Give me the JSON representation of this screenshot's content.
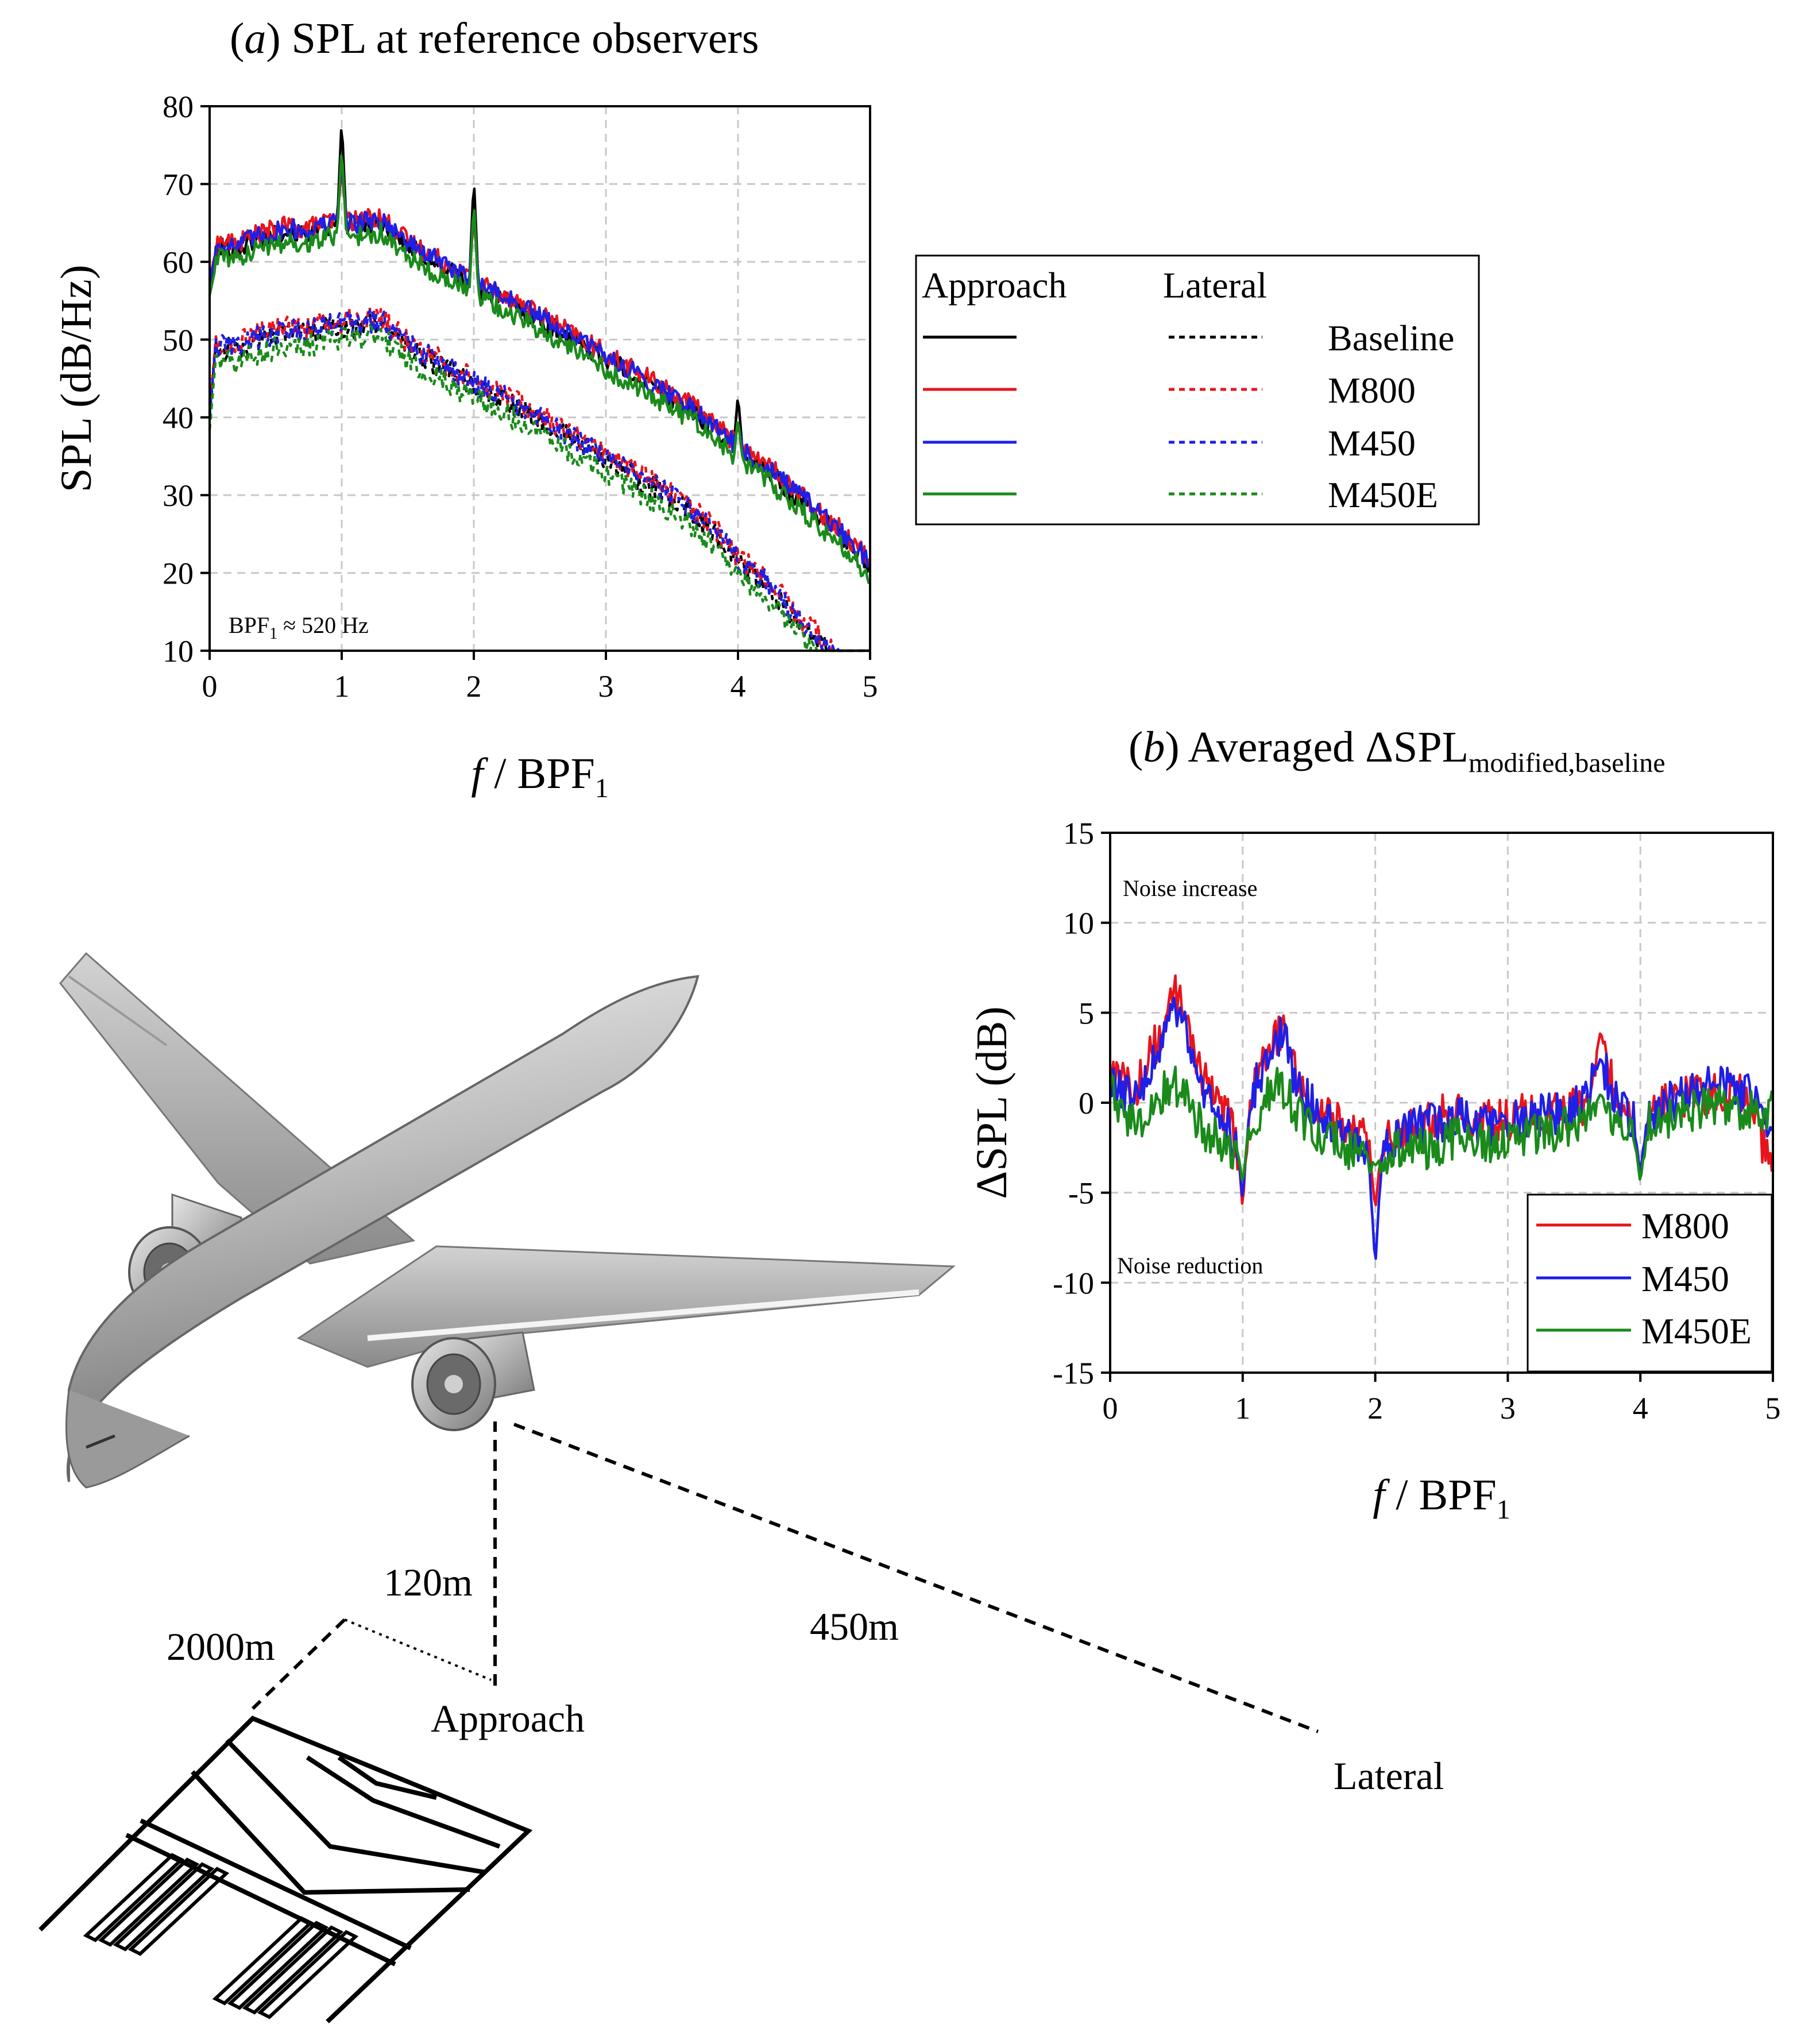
{
  "colors": {
    "baseline": "#000000",
    "m800": "#e8141c",
    "m450": "#1f1fe6",
    "m450e": "#1a8a1a"
  },
  "chart_data": [
    {
      "id": "a",
      "type": "line",
      "title_prefix": "(",
      "title_letter": "a",
      "title_rest": ") SPL at reference observers",
      "xlabel_var": "f",
      "xlabel_rest": " / BPF",
      "xlabel_sub": "1",
      "ylabel": "SPL (dB/Hz)",
      "xlim": [
        0,
        5
      ],
      "ylim": [
        10,
        80
      ],
      "xticks": [
        "0",
        "1",
        "2",
        "3",
        "4",
        "5"
      ],
      "yticks": [
        "10",
        "20",
        "30",
        "40",
        "50",
        "60",
        "70",
        "80"
      ],
      "grid": true,
      "annotation_pre": "BPF",
      "annotation_sub": "1",
      "annotation_post": " ≈ 520 Hz",
      "legend": {
        "placement": "right",
        "col_approach": "Approach",
        "col_lateral": "Lateral",
        "entries": [
          "Baseline",
          "M800",
          "M450",
          "M450E"
        ]
      },
      "approach_base": {
        "x": [
          0,
          0.05,
          0.1,
          0.2,
          0.3,
          0.4,
          0.5,
          0.6,
          0.7,
          0.8,
          0.9,
          0.95,
          1.0,
          1.05,
          1.1,
          1.2,
          1.3,
          1.4,
          1.5,
          1.6,
          1.8,
          1.95,
          2.0,
          2.05,
          2.2,
          2.4,
          2.6,
          2.8,
          3.0,
          3.2,
          3.4,
          3.6,
          3.8,
          3.95,
          4.0,
          4.05,
          4.2,
          4.4,
          4.6,
          4.8,
          5.0
        ],
        "y": [
          60,
          61.5,
          62,
          61.5,
          62.5,
          63,
          63.5,
          64,
          63.5,
          64,
          64.5,
          64.5,
          64.5,
          65,
          64.5,
          65,
          65,
          63.5,
          62,
          61,
          59,
          57.5,
          57,
          56.5,
          55.5,
          53.5,
          51.5,
          49.5,
          47.5,
          45.5,
          43.5,
          41.5,
          39,
          36.5,
          35.5,
          35,
          33.5,
          30.5,
          27.5,
          24.5,
          21
        ]
      },
      "series": [
        {
          "name": "Baseline",
          "approach": {
            "offset": 0,
            "peaks": [
              [
                1,
                78.5
              ],
              [
                2,
                71
              ],
              [
                4,
                43
              ]
            ]
          },
          "lateral": {
            "offset": -13
          }
        },
        {
          "name": "M800",
          "approach": {
            "offset": 0.7,
            "peaks": [
              [
                1,
                72
              ],
              [
                2,
                66
              ],
              [
                4,
                39
              ]
            ]
          },
          "lateral": {
            "offset": -12.2
          }
        },
        {
          "name": "M450",
          "approach": {
            "offset": 0.4,
            "peaks": [
              [
                1,
                73
              ],
              [
                2,
                67
              ],
              [
                4,
                39.5
              ]
            ]
          },
          "lateral": {
            "offset": -12.6
          }
        },
        {
          "name": "M450E",
          "approach": {
            "offset": -1.3,
            "peaks": [
              [
                1,
                75
              ],
              [
                2,
                68
              ],
              [
                4,
                40
              ]
            ]
          },
          "lateral": {
            "offset": -14.6
          }
        }
      ]
    },
    {
      "id": "b",
      "type": "line",
      "title_prefix": "(",
      "title_letter": "b",
      "title_rest": ") Averaged ΔSPL",
      "title_sub": "modified,baseline",
      "xlabel_var": "f",
      "xlabel_rest": " / BPF",
      "xlabel_sub": "1",
      "ylabel": "ΔSPL (dB)",
      "xlim": [
        0,
        5
      ],
      "ylim": [
        -15,
        15
      ],
      "xticks": [
        "0",
        "1",
        "2",
        "3",
        "4",
        "5"
      ],
      "yticks": [
        "-15",
        "-10",
        "-5",
        "0",
        "5",
        "10",
        "15"
      ],
      "grid": true,
      "annotation_top": "Noise increase",
      "annotation_bottom": "Noise reduction",
      "legend": {
        "placement": "bottom-right",
        "entries": [
          "M800",
          "M450",
          "M450E"
        ]
      },
      "series": [
        {
          "name": "M800",
          "x": [
            0,
            0.1,
            0.2,
            0.3,
            0.4,
            0.48,
            0.55,
            0.62,
            0.7,
            0.8,
            0.9,
            0.97,
            1.0,
            1.03,
            1.1,
            1.2,
            1.3,
            1.4,
            1.5,
            1.6,
            1.8,
            1.95,
            2.0,
            2.05,
            2.2,
            2.4,
            2.6,
            2.8,
            3.0,
            3.2,
            3.4,
            3.6,
            3.7,
            3.8,
            3.95,
            4.0,
            4.05,
            4.2,
            4.4,
            4.6,
            4.8,
            5.0
          ],
          "y": [
            1.5,
            1.2,
            0.8,
            2.5,
            4.2,
            6,
            5.5,
            3.5,
            1.2,
            0.2,
            -1,
            -3,
            -6,
            -2,
            1.2,
            3.2,
            4,
            1.5,
            0.3,
            -0.5,
            -1.5,
            -2,
            -6,
            -2,
            -1.5,
            -1,
            -0.5,
            -1,
            -1,
            -0.5,
            -0.5,
            0,
            4,
            0.5,
            -1,
            -4.5,
            -0.5,
            0.2,
            0.5,
            0.5,
            0.5,
            -4
          ]
        },
        {
          "name": "M450",
          "x": [
            0,
            0.1,
            0.2,
            0.3,
            0.4,
            0.48,
            0.55,
            0.62,
            0.7,
            0.8,
            0.9,
            0.97,
            1.0,
            1.03,
            1.1,
            1.2,
            1.3,
            1.4,
            1.5,
            1.6,
            1.8,
            1.95,
            2.0,
            2.05,
            2.2,
            2.4,
            2.6,
            2.8,
            3.0,
            3.2,
            3.4,
            3.6,
            3.7,
            3.8,
            3.95,
            4.0,
            4.05,
            4.2,
            4.4,
            4.6,
            4.8,
            5.0
          ],
          "y": [
            1,
            0.5,
            0.2,
            2,
            3.8,
            5.5,
            4.8,
            2.5,
            0.8,
            0,
            -1.2,
            -3,
            -5.5,
            -2,
            1,
            2.8,
            3.8,
            1.2,
            0,
            -0.8,
            -1.8,
            -2.5,
            -9.2,
            -2.5,
            -1.8,
            -1.2,
            -0.8,
            -1.2,
            -1.2,
            -0.8,
            -0.5,
            0.2,
            2.5,
            0.5,
            -1,
            -4,
            -0.5,
            0,
            0.5,
            1,
            0.5,
            -1
          ]
        },
        {
          "name": "M450E",
          "x": [
            0,
            0.1,
            0.2,
            0.3,
            0.4,
            0.48,
            0.55,
            0.62,
            0.7,
            0.8,
            0.9,
            0.97,
            1.0,
            1.03,
            1.1,
            1.2,
            1.3,
            1.4,
            1.5,
            1.6,
            1.8,
            1.95,
            2.0,
            2.05,
            2.2,
            2.4,
            2.6,
            2.8,
            3.0,
            3.2,
            3.4,
            3.6,
            3.7,
            3.8,
            3.95,
            4.0,
            4.05,
            4.2,
            4.4,
            4.6,
            4.8,
            5.0
          ],
          "y": [
            0.5,
            -0.5,
            -1,
            -0.2,
            0.5,
            1,
            0.8,
            -0.5,
            -1.5,
            -2,
            -2.5,
            -3,
            -4.5,
            -2.5,
            -1,
            0.5,
            1,
            -0.5,
            -1.5,
            -2,
            -2.5,
            -3,
            -3.5,
            -3,
            -2.5,
            -2.5,
            -2,
            -2.2,
            -2,
            -1.8,
            -1.5,
            -1,
            0.5,
            -0.8,
            -1.5,
            -4.5,
            -1.2,
            -0.8,
            -0.5,
            -0.2,
            -0.5,
            -0.5
          ]
        }
      ]
    }
  ],
  "diagram": {
    "label_120m": "120m",
    "label_2000m": "2000m",
    "label_450m": "450m",
    "label_approach": "Approach",
    "label_lateral": "Lateral"
  }
}
